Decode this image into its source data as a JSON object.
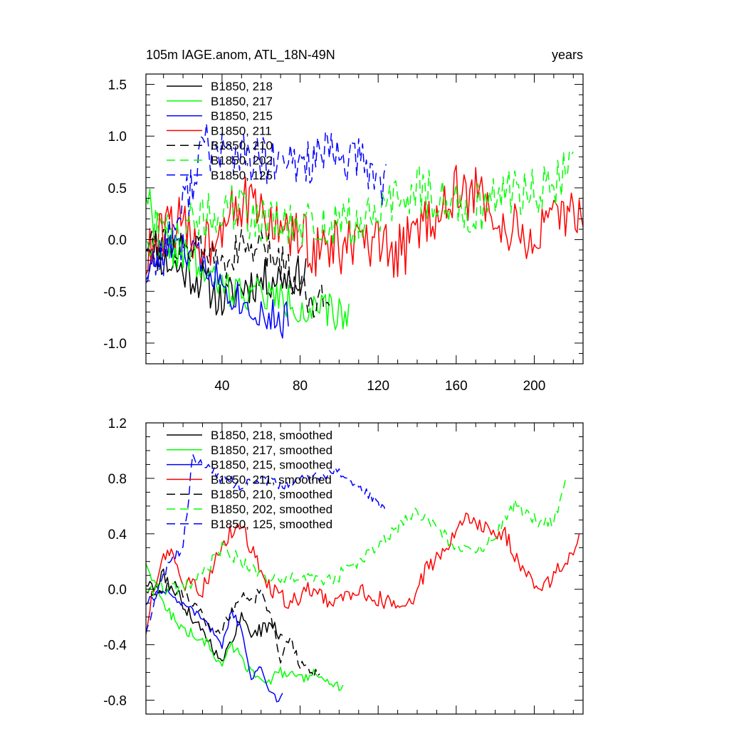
{
  "chart_data": [
    {
      "type": "line",
      "title": "105m IAGE.anom, ATL_18N-49N",
      "right_title": "years",
      "xlim": [
        1,
        225
      ],
      "ylim": [
        -1.2,
        1.6
      ],
      "xticks": [
        40,
        80,
        120,
        160,
        200
      ],
      "xtick_labels": [
        "40",
        "80",
        "120",
        "160",
        "200"
      ],
      "yticks": [
        -1.0,
        -0.5,
        0.0,
        0.5,
        1.0,
        1.5
      ],
      "ytick_labels": [
        "-1.0",
        "-0.5",
        "0.0",
        "0.5",
        "1.0",
        "1.5"
      ],
      "legend_position": "top-left",
      "series": [
        {
          "name": "B1850, 218",
          "color": "#000000",
          "dash": "solid",
          "seed": 11,
          "start": 1,
          "end": 83,
          "anchors": [
            [
              1,
              0.0
            ],
            [
              10,
              -0.2
            ],
            [
              20,
              -0.3
            ],
            [
              30,
              -0.4
            ],
            [
              40,
              -0.6
            ],
            [
              50,
              -0.45
            ],
            [
              60,
              -0.4
            ],
            [
              70,
              -0.35
            ],
            [
              80,
              -0.35
            ],
            [
              83,
              -0.3
            ]
          ],
          "amp": 0.2
        },
        {
          "name": "B1850, 217",
          "color": "#00ff00",
          "dash": "solid",
          "seed": 22,
          "start": 1,
          "end": 105,
          "anchors": [
            [
              1,
              0.5
            ],
            [
              5,
              0.2
            ],
            [
              15,
              -0.1
            ],
            [
              25,
              -0.2
            ],
            [
              35,
              -0.4
            ],
            [
              45,
              -0.5
            ],
            [
              55,
              -0.5
            ],
            [
              65,
              -0.55
            ],
            [
              75,
              -0.6
            ],
            [
              85,
              -0.7
            ],
            [
              95,
              -0.7
            ],
            [
              105,
              -0.75
            ]
          ],
          "amp": 0.18
        },
        {
          "name": "B1850, 215",
          "color": "#0000ff",
          "dash": "solid",
          "seed": 33,
          "start": 1,
          "end": 74,
          "anchors": [
            [
              1,
              -0.3
            ],
            [
              10,
              -0.1
            ],
            [
              20,
              -0.1
            ],
            [
              30,
              -0.2
            ],
            [
              40,
              -0.4
            ],
            [
              50,
              -0.6
            ],
            [
              60,
              -0.7
            ],
            [
              70,
              -0.8
            ],
            [
              74,
              -0.75
            ]
          ],
          "amp": 0.18
        },
        {
          "name": "B1850, 211",
          "color": "#ff0000",
          "dash": "solid",
          "seed": 44,
          "start": 1,
          "end": 225,
          "anchors": [
            [
              1,
              -0.2
            ],
            [
              15,
              0.2
            ],
            [
              25,
              0.0
            ],
            [
              35,
              0.0
            ],
            [
              45,
              0.4
            ],
            [
              55,
              0.3
            ],
            [
              70,
              0.1
            ],
            [
              90,
              -0.1
            ],
            [
              110,
              -0.05
            ],
            [
              130,
              -0.15
            ],
            [
              145,
              0.2
            ],
            [
              160,
              0.45
            ],
            [
              175,
              0.4
            ],
            [
              185,
              0.1
            ],
            [
              200,
              0.0
            ],
            [
              215,
              0.2
            ],
            [
              225,
              0.35
            ]
          ],
          "amp": 0.28
        },
        {
          "name": "B1850, 210",
          "color": "#000000",
          "dash": "dashed",
          "seed": 55,
          "start": 1,
          "end": 95,
          "anchors": [
            [
              1,
              0.0
            ],
            [
              10,
              0.0
            ],
            [
              20,
              -0.05
            ],
            [
              30,
              -0.15
            ],
            [
              40,
              -0.2
            ],
            [
              50,
              -0.1
            ],
            [
              60,
              -0.1
            ],
            [
              70,
              -0.2
            ],
            [
              80,
              -0.45
            ],
            [
              90,
              -0.6
            ],
            [
              95,
              -0.55
            ]
          ],
          "amp": 0.2
        },
        {
          "name": "B1850, 202",
          "color": "#00ff00",
          "dash": "dashed",
          "seed": 66,
          "start": 1,
          "end": 220,
          "anchors": [
            [
              1,
              0.1
            ],
            [
              15,
              0.0
            ],
            [
              30,
              0.2
            ],
            [
              45,
              0.3
            ],
            [
              60,
              0.2
            ],
            [
              75,
              0.1
            ],
            [
              90,
              0.15
            ],
            [
              110,
              0.15
            ],
            [
              125,
              0.3
            ],
            [
              140,
              0.5
            ],
            [
              155,
              0.35
            ],
            [
              170,
              0.3
            ],
            [
              185,
              0.45
            ],
            [
              200,
              0.5
            ],
            [
              210,
              0.5
            ],
            [
              220,
              0.8
            ]
          ],
          "amp": 0.25
        },
        {
          "name": "B1850, 125",
          "color": "#0000ff",
          "dash": "dashed",
          "seed": 77,
          "start": 1,
          "end": 124,
          "anchors": [
            [
              1,
              -0.3
            ],
            [
              10,
              -0.1
            ],
            [
              20,
              0.3
            ],
            [
              30,
              0.9
            ],
            [
              40,
              0.85
            ],
            [
              50,
              0.8
            ],
            [
              60,
              0.75
            ],
            [
              70,
              0.7
            ],
            [
              80,
              0.75
            ],
            [
              90,
              0.8
            ],
            [
              100,
              0.8
            ],
            [
              110,
              0.75
            ],
            [
              120,
              0.6
            ],
            [
              124,
              0.55
            ]
          ],
          "amp": 0.25
        }
      ]
    },
    {
      "type": "line",
      "title": "",
      "xlim": [
        1,
        225
      ],
      "ylim": [
        -0.9,
        1.2
      ],
      "xticks": [
        40,
        80,
        120,
        160,
        200
      ],
      "xtick_labels": [],
      "yticks": [
        -0.8,
        -0.4,
        0.0,
        0.4,
        0.8,
        1.2
      ],
      "ytick_labels": [
        "-0.8",
        "-0.4",
        "0.0",
        "0.4",
        "0.8",
        "1.2"
      ],
      "legend_position": "top-left",
      "series": [
        {
          "name": "B1850, 218, smoothed",
          "color": "#000000",
          "dash": "solid",
          "seed": 111,
          "start": 1,
          "end": 71,
          "anchors": [
            [
              1,
              0.05
            ],
            [
              5,
              0.0
            ],
            [
              10,
              0.1
            ],
            [
              15,
              0.0
            ],
            [
              20,
              -0.1
            ],
            [
              25,
              -0.2
            ],
            [
              30,
              -0.3
            ],
            [
              35,
              -0.4
            ],
            [
              40,
              -0.55
            ],
            [
              45,
              -0.35
            ],
            [
              50,
              -0.2
            ],
            [
              55,
              -0.3
            ],
            [
              60,
              -0.3
            ],
            [
              65,
              -0.25
            ],
            [
              71,
              -0.35
            ]
          ],
          "amp": 0.05
        },
        {
          "name": "B1850, 217, smoothed",
          "color": "#00ff00",
          "dash": "solid",
          "seed": 122,
          "start": 1,
          "end": 102,
          "anchors": [
            [
              1,
              0.2
            ],
            [
              5,
              0.05
            ],
            [
              10,
              -0.1
            ],
            [
              20,
              -0.3
            ],
            [
              30,
              -0.35
            ],
            [
              40,
              -0.55
            ],
            [
              45,
              -0.4
            ],
            [
              50,
              -0.5
            ],
            [
              55,
              -0.6
            ],
            [
              65,
              -0.65
            ],
            [
              70,
              -0.6
            ],
            [
              80,
              -0.65
            ],
            [
              90,
              -0.6
            ],
            [
              95,
              -0.68
            ],
            [
              102,
              -0.72
            ]
          ],
          "amp": 0.04
        },
        {
          "name": "B1850, 215, smoothed",
          "color": "#0000ff",
          "dash": "solid",
          "seed": 133,
          "start": 1,
          "end": 71,
          "anchors": [
            [
              1,
              -0.1
            ],
            [
              5,
              -0.05
            ],
            [
              10,
              0.0
            ],
            [
              15,
              -0.05
            ],
            [
              20,
              -0.1
            ],
            [
              30,
              -0.2
            ],
            [
              40,
              -0.4
            ],
            [
              45,
              -0.15
            ],
            [
              50,
              -0.3
            ],
            [
              55,
              -0.65
            ],
            [
              60,
              -0.55
            ],
            [
              65,
              -0.75
            ],
            [
              68,
              -0.8
            ],
            [
              71,
              -0.75
            ]
          ],
          "amp": 0.03
        },
        {
          "name": "B1850, 211, smoothed",
          "color": "#ff0000",
          "dash": "solid",
          "seed": 144,
          "start": 1,
          "end": 223,
          "anchors": [
            [
              1,
              -0.3
            ],
            [
              5,
              0.0
            ],
            [
              12,
              0.3
            ],
            [
              20,
              0.05
            ],
            [
              30,
              0.0
            ],
            [
              40,
              0.3
            ],
            [
              48,
              0.5
            ],
            [
              55,
              0.3
            ],
            [
              65,
              0.0
            ],
            [
              75,
              -0.1
            ],
            [
              85,
              0.0
            ],
            [
              95,
              -0.1
            ],
            [
              110,
              0.0
            ],
            [
              125,
              -0.1
            ],
            [
              135,
              -0.15
            ],
            [
              145,
              0.15
            ],
            [
              155,
              0.3
            ],
            [
              165,
              0.5
            ],
            [
              175,
              0.45
            ],
            [
              185,
              0.4
            ],
            [
              195,
              0.1
            ],
            [
              205,
              0.0
            ],
            [
              215,
              0.2
            ],
            [
              223,
              0.35
            ]
          ],
          "amp": 0.06
        },
        {
          "name": "B1850, 210, smoothed",
          "color": "#000000",
          "dash": "dashed",
          "seed": 155,
          "start": 1,
          "end": 90,
          "anchors": [
            [
              1,
              0.0
            ],
            [
              5,
              -0.05
            ],
            [
              15,
              0.05
            ],
            [
              25,
              -0.1
            ],
            [
              35,
              -0.3
            ],
            [
              40,
              -0.3
            ],
            [
              45,
              -0.15
            ],
            [
              50,
              -0.05
            ],
            [
              55,
              -0.1
            ],
            [
              60,
              0.0
            ],
            [
              65,
              -0.2
            ],
            [
              70,
              -0.5
            ],
            [
              75,
              -0.35
            ],
            [
              80,
              -0.55
            ],
            [
              85,
              -0.6
            ],
            [
              90,
              -0.6
            ]
          ],
          "amp": 0.04
        },
        {
          "name": "B1850, 202, smoothed",
          "color": "#00ff00",
          "dash": "dashed",
          "seed": 166,
          "start": 1,
          "end": 216,
          "anchors": [
            [
              1,
              0.0
            ],
            [
              10,
              0.0
            ],
            [
              20,
              0.0
            ],
            [
              30,
              0.1
            ],
            [
              40,
              0.3
            ],
            [
              50,
              0.2
            ],
            [
              60,
              0.1
            ],
            [
              70,
              0.05
            ],
            [
              80,
              0.1
            ],
            [
              90,
              0.05
            ],
            [
              100,
              0.1
            ],
            [
              110,
              0.2
            ],
            [
              120,
              0.3
            ],
            [
              130,
              0.45
            ],
            [
              140,
              0.55
            ],
            [
              150,
              0.45
            ],
            [
              160,
              0.3
            ],
            [
              170,
              0.25
            ],
            [
              180,
              0.4
            ],
            [
              190,
              0.6
            ],
            [
              200,
              0.5
            ],
            [
              210,
              0.5
            ],
            [
              216,
              0.8
            ]
          ],
          "amp": 0.05
        },
        {
          "name": "B1850, 125, smoothed",
          "color": "#0000ff",
          "dash": "dashed",
          "seed": 177,
          "start": 1,
          "end": 124,
          "anchors": [
            [
              1,
              -0.3
            ],
            [
              5,
              -0.1
            ],
            [
              10,
              0.1
            ],
            [
              15,
              0.25
            ],
            [
              20,
              0.3
            ],
            [
              25,
              0.95
            ],
            [
              30,
              0.9
            ],
            [
              35,
              0.85
            ],
            [
              40,
              0.8
            ],
            [
              50,
              0.75
            ],
            [
              60,
              0.8
            ],
            [
              70,
              0.75
            ],
            [
              80,
              0.8
            ],
            [
              90,
              0.8
            ],
            [
              100,
              0.85
            ],
            [
              110,
              0.75
            ],
            [
              118,
              0.65
            ],
            [
              124,
              0.55
            ]
          ],
          "amp": 0.04
        }
      ]
    }
  ]
}
